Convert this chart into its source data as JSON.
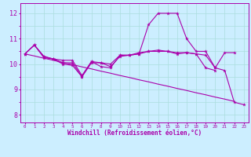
{
  "x": [
    0,
    1,
    2,
    3,
    4,
    5,
    6,
    7,
    8,
    9,
    10,
    11,
    12,
    13,
    14,
    15,
    16,
    17,
    18,
    19,
    20,
    21,
    22,
    23
  ],
  "line1": [
    10.4,
    10.75,
    10.3,
    10.2,
    10.15,
    10.15,
    9.55,
    10.1,
    10.05,
    10.0,
    10.35,
    10.35,
    10.4,
    10.5,
    10.5,
    10.5,
    10.45,
    10.45,
    10.4,
    10.35,
    9.85,
    10.45,
    10.45,
    null
  ],
  "line2": [
    10.4,
    10.75,
    10.3,
    10.2,
    10.0,
    9.95,
    9.5,
    10.1,
    9.9,
    9.85,
    10.35,
    10.35,
    10.4,
    11.55,
    12.0,
    12.0,
    12.0,
    11.0,
    10.5,
    10.5,
    9.85,
    9.75,
    8.5,
    8.4
  ],
  "line3": [
    10.4,
    10.75,
    10.25,
    10.2,
    10.05,
    10.05,
    9.5,
    10.05,
    10.05,
    9.9,
    10.3,
    10.35,
    10.45,
    10.5,
    10.55,
    10.5,
    10.4,
    10.45,
    10.4,
    9.85,
    9.75,
    null,
    null,
    null
  ],
  "line_trend": [
    10.4,
    10.32,
    10.23,
    10.15,
    10.06,
    9.98,
    9.89,
    9.81,
    9.72,
    9.64,
    9.55,
    9.47,
    9.38,
    9.3,
    9.21,
    9.13,
    9.04,
    8.96,
    8.87,
    8.79,
    8.7,
    8.62,
    8.53,
    null
  ],
  "bg_color": "#cceeff",
  "grid_color": "#aadddd",
  "line_color": "#aa00aa",
  "yticks_major": [
    8,
    9,
    10,
    11,
    12
  ],
  "yticks_minor": [
    7.5,
    8.5,
    9.5,
    10.5,
    11.5,
    12.5
  ],
  "xlim": [
    -0.5,
    23.5
  ],
  "ylim": [
    7.7,
    12.4
  ],
  "xlabel": "Windchill (Refroidissement éolien,°C)"
}
